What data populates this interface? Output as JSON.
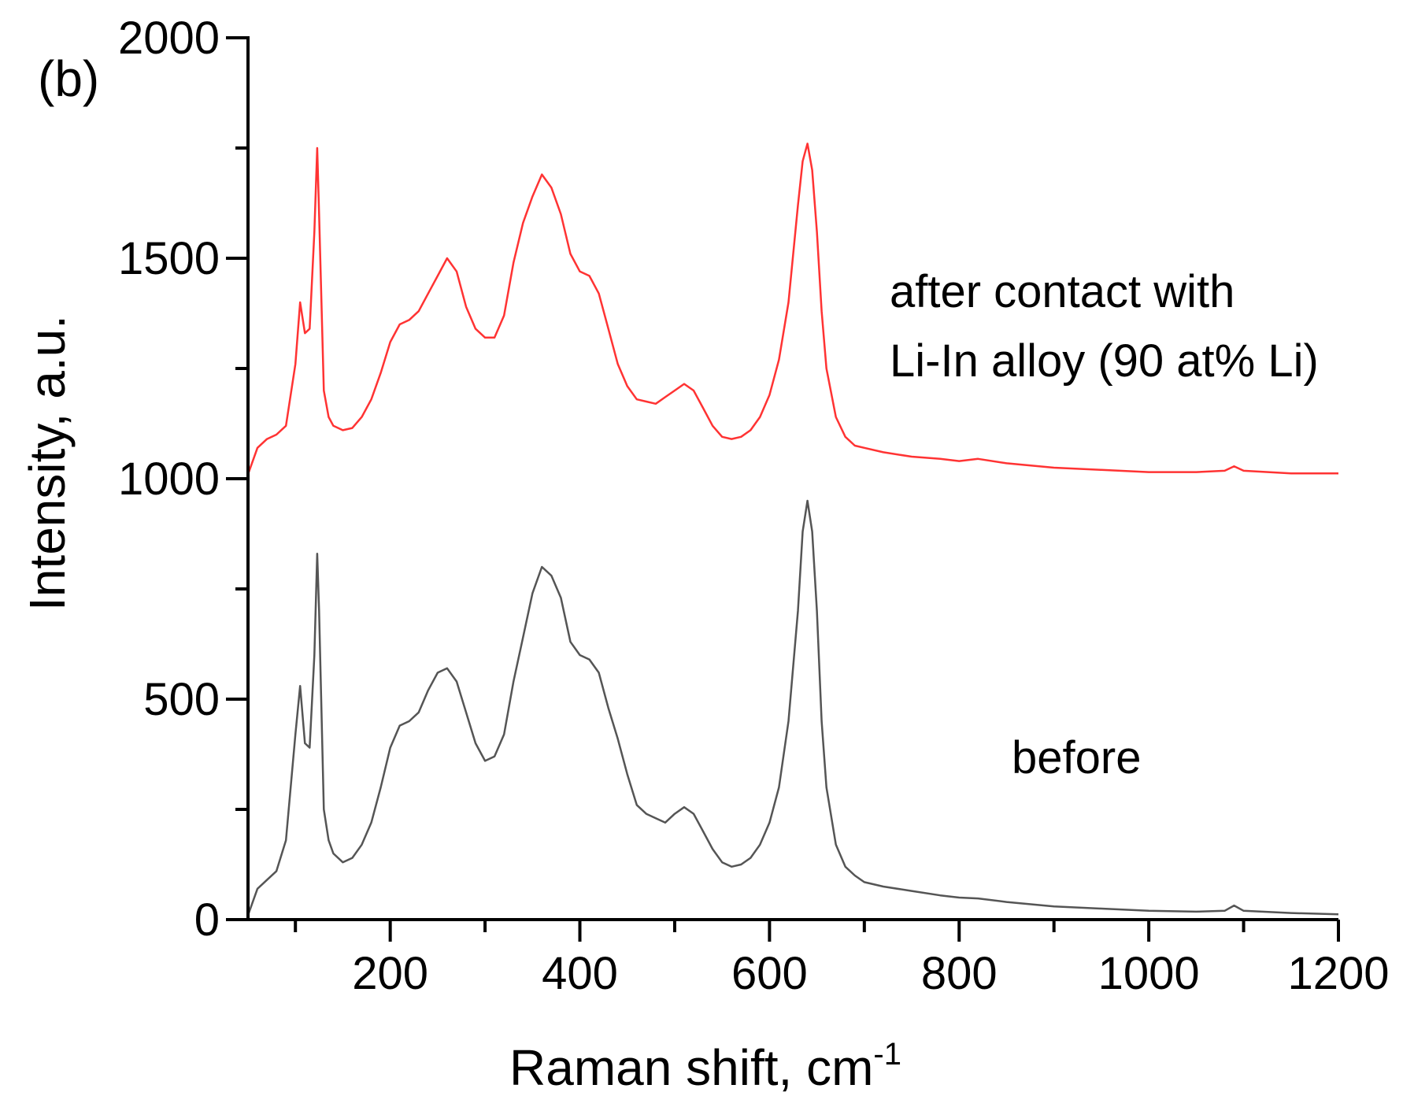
{
  "chart_data": {
    "type": "line",
    "panel_label": "(b)",
    "xlabel": "Raman shift, cm",
    "xlabel_sup": "-1",
    "ylabel": "Intensity, a.u.",
    "xlim": [
      50,
      1200
    ],
    "ylim": [
      0,
      2000
    ],
    "x_ticks": [
      200,
      400,
      600,
      800,
      1000,
      1200
    ],
    "x_tick_labels": [
      "200",
      "400",
      "600",
      "800",
      "1000",
      "1200"
    ],
    "y_ticks": [
      0,
      500,
      1000,
      1500,
      2000
    ],
    "y_tick_labels": [
      "0",
      "500",
      "1000",
      "1500",
      "2000"
    ],
    "grid": false,
    "legend": "none",
    "annotations": [
      {
        "text": "after contact with",
        "series": "after"
      },
      {
        "text": "Li-In alloy (90 at% Li)",
        "series": "after"
      },
      {
        "text": "before",
        "series": "before"
      }
    ],
    "series": [
      {
        "key": "before",
        "color": "#555555",
        "x": [
          50,
          60,
          70,
          80,
          90,
          100,
          105,
          110,
          115,
          120,
          123,
          125,
          130,
          135,
          140,
          150,
          160,
          170,
          180,
          190,
          200,
          210,
          220,
          230,
          240,
          250,
          260,
          270,
          280,
          290,
          300,
          310,
          320,
          330,
          340,
          350,
          360,
          370,
          380,
          390,
          400,
          410,
          420,
          430,
          440,
          450,
          460,
          470,
          480,
          490,
          500,
          510,
          520,
          530,
          540,
          550,
          560,
          570,
          580,
          590,
          600,
          610,
          620,
          630,
          635,
          640,
          645,
          650,
          655,
          660,
          670,
          680,
          690,
          700,
          720,
          750,
          780,
          800,
          820,
          850,
          900,
          950,
          1000,
          1050,
          1080,
          1090,
          1100,
          1150,
          1200
        ],
        "y": [
          10,
          70,
          90,
          110,
          180,
          420,
          530,
          400,
          390,
          600,
          830,
          700,
          250,
          180,
          150,
          130,
          140,
          170,
          220,
          300,
          390,
          440,
          450,
          470,
          520,
          560,
          570,
          540,
          470,
          400,
          360,
          370,
          420,
          540,
          640,
          740,
          800,
          780,
          730,
          630,
          600,
          590,
          560,
          480,
          410,
          330,
          260,
          240,
          230,
          220,
          240,
          255,
          240,
          200,
          160,
          130,
          120,
          125,
          140,
          170,
          220,
          300,
          450,
          700,
          880,
          950,
          880,
          700,
          450,
          300,
          170,
          120,
          100,
          85,
          75,
          65,
          55,
          50,
          48,
          40,
          30,
          25,
          20,
          18,
          20,
          32,
          20,
          15,
          12
        ]
      },
      {
        "key": "after",
        "color": "#ff3333",
        "x": [
          50,
          60,
          70,
          80,
          90,
          100,
          105,
          110,
          115,
          120,
          123,
          125,
          130,
          135,
          140,
          150,
          160,
          170,
          180,
          190,
          200,
          210,
          220,
          230,
          240,
          250,
          260,
          270,
          280,
          290,
          300,
          310,
          320,
          330,
          340,
          350,
          360,
          370,
          380,
          390,
          400,
          410,
          420,
          430,
          440,
          450,
          460,
          470,
          480,
          490,
          500,
          510,
          520,
          530,
          540,
          550,
          560,
          570,
          580,
          590,
          600,
          610,
          620,
          630,
          635,
          640,
          645,
          650,
          655,
          660,
          670,
          680,
          690,
          700,
          720,
          750,
          780,
          800,
          820,
          850,
          900,
          950,
          1000,
          1050,
          1080,
          1090,
          1100,
          1150,
          1200
        ],
        "y": [
          1010,
          1070,
          1090,
          1100,
          1120,
          1260,
          1400,
          1330,
          1340,
          1560,
          1750,
          1600,
          1200,
          1140,
          1120,
          1110,
          1115,
          1140,
          1180,
          1240,
          1310,
          1350,
          1360,
          1380,
          1420,
          1460,
          1500,
          1470,
          1390,
          1340,
          1320,
          1320,
          1370,
          1490,
          1580,
          1640,
          1690,
          1660,
          1600,
          1510,
          1470,
          1460,
          1420,
          1340,
          1260,
          1210,
          1180,
          1175,
          1170,
          1185,
          1200,
          1215,
          1200,
          1160,
          1120,
          1095,
          1090,
          1095,
          1110,
          1140,
          1190,
          1270,
          1400,
          1620,
          1720,
          1760,
          1700,
          1560,
          1380,
          1250,
          1140,
          1095,
          1075,
          1070,
          1060,
          1050,
          1045,
          1040,
          1045,
          1035,
          1025,
          1020,
          1015,
          1015,
          1018,
          1028,
          1018,
          1012,
          1012
        ]
      }
    ]
  }
}
